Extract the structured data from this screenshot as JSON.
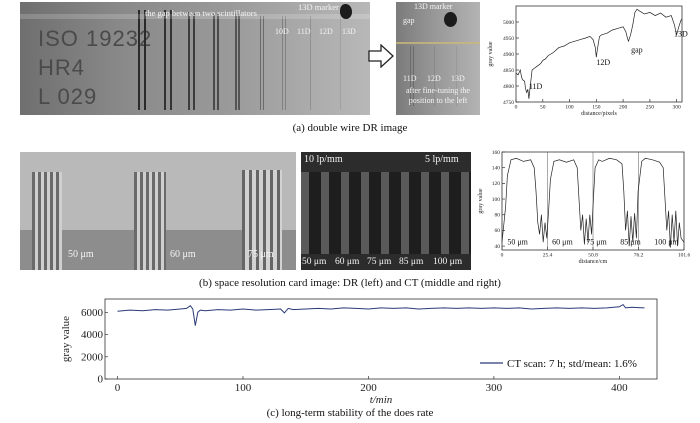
{
  "panel_a": {
    "left_image": {
      "plate_lines": [
        "ISO 19232",
        "HR4",
        "L 029"
      ],
      "gap_label": "the gap between two scintillators",
      "marker_label": "13D marker",
      "wire_labels": [
        "10D",
        "11D",
        "12D",
        "13D"
      ]
    },
    "arrow_icon": "right-arrow-icon",
    "middle_image": {
      "marker_label": "13D marker",
      "gap_label": "gap",
      "wire_labels": [
        "11D",
        "12D",
        "13D"
      ],
      "note": "after fine-tuning the position to the left"
    },
    "caption": "(a) double wire DR image"
  },
  "panel_b": {
    "dr_image": {
      "labels": [
        "50 μm",
        "60 μm",
        "75 μm"
      ]
    },
    "ct_image": {
      "top_left": "10 lp/mm",
      "top_right": "5 lp/mm",
      "bottom_labels": [
        "50 μm",
        "60 μm",
        "75 μm",
        "85 μm",
        "100 μm"
      ]
    },
    "caption": "(b) space resolution card image: DR (left) and CT (middle and right)"
  },
  "panel_c": {
    "caption": "(c) long-term stability of the does rate"
  },
  "colors": {
    "series": "#2b3a78",
    "axis": "#222222",
    "image_bg": "#8a8a8a"
  },
  "chart_data": [
    {
      "type": "line",
      "xlabel": "distance/pixels",
      "ylabel": "gray value",
      "xlim": [
        0,
        310
      ],
      "ylim": [
        4750,
        5050
      ],
      "xticks": [
        0,
        50,
        100,
        150,
        200,
        250,
        300
      ],
      "yticks": [
        4750,
        4800,
        4850,
        4900,
        4950,
        5000
      ],
      "annotations": [
        {
          "text": "11D",
          "x": 24,
          "y": 4790
        },
        {
          "text": "12D",
          "x": 150,
          "y": 4865
        },
        {
          "text": "gap",
          "x": 215,
          "y": 4905
        },
        {
          "text": "13D",
          "x": 295,
          "y": 4955
        }
      ],
      "series": [
        {
          "x": [
            0,
            4,
            8,
            10,
            12,
            16,
            18,
            20,
            22,
            24,
            26,
            28,
            30,
            34,
            38,
            42,
            46,
            50,
            55,
            60,
            70,
            80,
            90,
            100,
            110,
            120,
            130,
            138,
            144,
            148,
            150,
            152,
            156,
            160,
            170,
            180,
            190,
            200,
            205,
            208,
            210,
            214,
            218,
            222,
            226,
            230,
            240,
            250,
            260,
            270,
            280,
            290,
            296,
            300,
            304,
            308,
            310
          ],
          "y": [
            4840,
            4835,
            4850,
            4830,
            4820,
            4815,
            4790,
            4780,
            4790,
            4760,
            4790,
            4820,
            4850,
            4855,
            4860,
            4865,
            4870,
            4880,
            4885,
            4895,
            4905,
            4920,
            4925,
            4935,
            4940,
            4945,
            4950,
            4955,
            4945,
            4920,
            4890,
            4915,
            4955,
            4960,
            4965,
            4975,
            4980,
            4985,
            4970,
            4950,
            4940,
            4960,
            4990,
            5030,
            5040,
            5035,
            5025,
            5030,
            5020,
            5028,
            5015,
            5020,
            4990,
            4960,
            4985,
            5005,
            5010
          ]
        }
      ]
    },
    {
      "type": "line",
      "xlabel": "distance/cm",
      "ylabel": "gray value",
      "xlim": [
        0,
        101.6
      ],
      "ylim": [
        35,
        160
      ],
      "xticks": [
        0,
        25.4,
        50.8,
        76.2,
        101.6
      ],
      "yticks": [
        40,
        60,
        80,
        100,
        120,
        140,
        160
      ],
      "annotations": [
        {
          "text": "50 μm",
          "x": 3,
          "y": 42
        },
        {
          "text": "60 μm",
          "x": 28,
          "y": 42
        },
        {
          "text": "75 μm",
          "x": 47,
          "y": 42
        },
        {
          "text": "85 μm",
          "x": 66,
          "y": 42
        },
        {
          "text": "100 μm",
          "x": 85,
          "y": 42
        }
      ],
      "series": [
        {
          "x": [
            0,
            2,
            3,
            5,
            8,
            12,
            16,
            18,
            19,
            20,
            21,
            22,
            23,
            24,
            25,
            26,
            27,
            29,
            32,
            36,
            40,
            42,
            43,
            44,
            45,
            46,
            47,
            48,
            49,
            50,
            51,
            52,
            54,
            56,
            60,
            64,
            67,
            68,
            69,
            70,
            71,
            72,
            73,
            74,
            75,
            76,
            78,
            80,
            84,
            88,
            90,
            91,
            92,
            93,
            94,
            95,
            96,
            97,
            98,
            99,
            100,
            101.6
          ],
          "y": [
            45,
            90,
            130,
            150,
            152,
            148,
            150,
            140,
            110,
            70,
            55,
            80,
            45,
            70,
            50,
            85,
            125,
            148,
            150,
            147,
            150,
            140,
            100,
            60,
            80,
            42,
            75,
            45,
            80,
            55,
            100,
            140,
            150,
            148,
            152,
            150,
            145,
            110,
            60,
            85,
            40,
            78,
            45,
            82,
            50,
            110,
            148,
            152,
            150,
            147,
            140,
            100,
            60,
            85,
            38,
            80,
            45,
            85,
            40,
            70,
            50,
            45
          ]
        }
      ]
    },
    {
      "type": "line",
      "xlabel": "t/min",
      "ylabel": "gray value",
      "xlim": [
        -10,
        430
      ],
      "ylim": [
        0,
        7200
      ],
      "xticks": [
        0,
        100,
        200,
        300,
        400
      ],
      "yticks": [
        0,
        2000,
        4000,
        6000
      ],
      "legend": "CT scan: 7 h; std/mean: 1.6%",
      "legend_position": "bottom-right",
      "series": [
        {
          "name": "CT scan: 7 h; std/mean: 1.6%",
          "x": [
            0,
            10,
            20,
            30,
            40,
            50,
            55,
            58,
            60,
            62,
            64,
            66,
            70,
            80,
            90,
            100,
            110,
            120,
            130,
            133,
            136,
            140,
            150,
            160,
            170,
            180,
            190,
            200,
            210,
            220,
            230,
            240,
            250,
            260,
            270,
            280,
            290,
            300,
            310,
            320,
            330,
            340,
            350,
            360,
            370,
            380,
            390,
            400,
            403,
            405,
            410,
            420
          ],
          "y": [
            6100,
            6200,
            6150,
            6250,
            6200,
            6300,
            6350,
            6600,
            6300,
            4800,
            6000,
            6200,
            6150,
            6250,
            6200,
            6300,
            6200,
            6250,
            6300,
            5950,
            6350,
            6250,
            6300,
            6350,
            6300,
            6400,
            6350,
            6300,
            6400,
            6350,
            6400,
            6300,
            6350,
            6400,
            6350,
            6400,
            6350,
            6400,
            6350,
            6400,
            6300,
            6350,
            6400,
            6350,
            6400,
            6350,
            6400,
            6500,
            6700,
            6400,
            6450,
            6400
          ]
        }
      ]
    }
  ]
}
